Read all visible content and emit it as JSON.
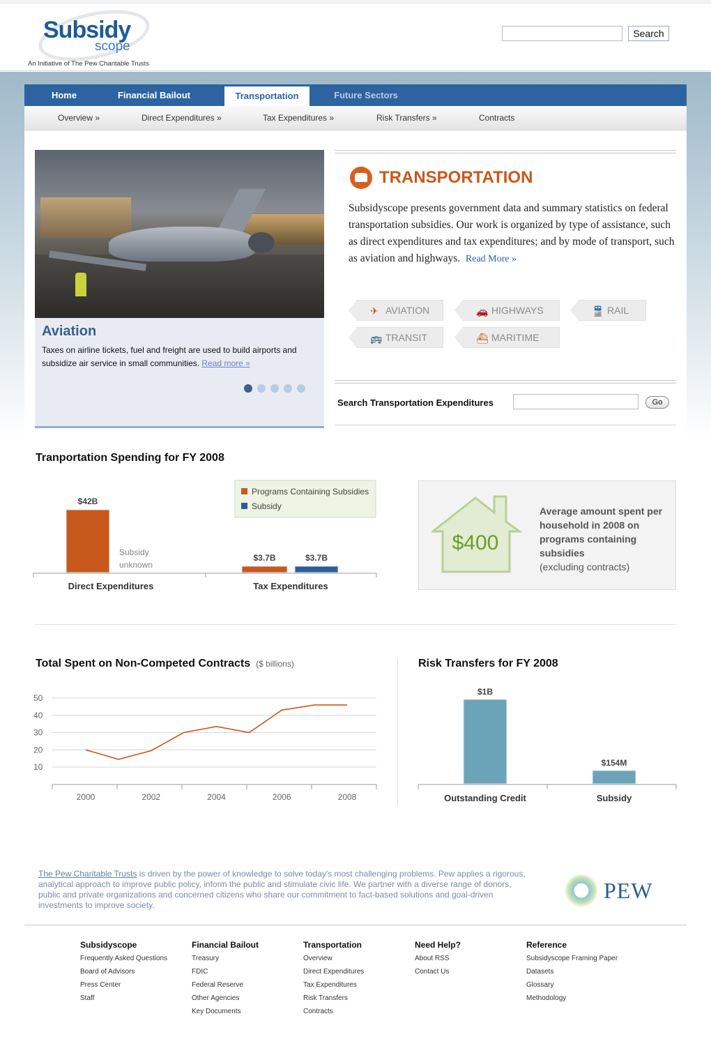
{
  "header": {
    "logo_word1": "Subsidy",
    "logo_word2": "scope",
    "tagline": "An Initiative of The Pew Charitable Trusts",
    "search_placeholder": "",
    "search_button": "Search"
  },
  "nav": {
    "tabs": [
      {
        "label": "Home",
        "state": "normal"
      },
      {
        "label": "Financial Bailout",
        "state": "normal"
      },
      {
        "label": "Transportation",
        "state": "active"
      },
      {
        "label": "Future Sectors",
        "state": "disabled"
      }
    ],
    "subnav": [
      "Overview »",
      "Direct Expenditures »",
      "Tax Expenditures »",
      "Risk Transfers »",
      "Contracts"
    ]
  },
  "feature": {
    "title": "Aviation",
    "text": "Taxes on airline tickets, fuel and freight are used to build airports and subsidize air service in small communities.",
    "link": "Read more »",
    "slides": 5,
    "active_slide": 1
  },
  "transportation": {
    "title": "TRANSPORTATION",
    "intro": "Subsidyscope presents government data and summary statistics on federal transportation subsidies. Our work is organized by type of assistance, such as direct expenditures and tax expenditures; and by mode of transport, such as aviation and highways.",
    "read_more": "Read More »",
    "modes": [
      {
        "label": "AVIATION",
        "icon": "plane-icon",
        "glyph": "✈"
      },
      {
        "label": "HIGHWAYS",
        "icon": "car-icon",
        "glyph": "🚗"
      },
      {
        "label": "RAIL",
        "icon": "train-icon",
        "glyph": "🚆"
      },
      {
        "label": "TRANSIT",
        "icon": "bus-icon",
        "glyph": "🚌"
      },
      {
        "label": "MARITIME",
        "icon": "ship-icon",
        "glyph": "⛴"
      }
    ],
    "search_label": "Search Transportation Expenditures",
    "go_button": "Go"
  },
  "spending": {
    "title": "Tranportation Spending for FY 2008",
    "legend": [
      "Programs Containing Subsidies",
      "Subsidy"
    ],
    "note": "Subsidy\nunknown",
    "colors": {
      "programs": "#c8581c",
      "subsidy": "#2e5d94"
    }
  },
  "household": {
    "amount": "$400",
    "text_bold": "Average amount spent per household in 2008 on programs containing subsidies",
    "text_normal": "(excluding contracts)"
  },
  "contracts": {
    "title": "Total Spent on Non-Competed Contracts",
    "unit": "($ billions)"
  },
  "risk": {
    "title": "Risk Transfers for FY 2008"
  },
  "chart_data": [
    {
      "type": "bar",
      "categories": [
        "Direct Expenditures",
        "Tax Expenditures"
      ],
      "series": [
        {
          "name": "Programs Containing Subsidies",
          "values": [
            42,
            3.7
          ],
          "labels": [
            "$42B",
            "$3.7B"
          ]
        },
        {
          "name": "Subsidy",
          "values": [
            null,
            3.7
          ],
          "labels": [
            "",
            "$3.7B"
          ]
        }
      ],
      "ylim": [
        0,
        45
      ],
      "legend": "top-right"
    },
    {
      "type": "line",
      "x": [
        2000,
        2001,
        2002,
        2003,
        2004,
        2005,
        2006,
        2007,
        2008
      ],
      "values": [
        20,
        14.5,
        19.5,
        30,
        33.5,
        30,
        43,
        46,
        46
      ],
      "xticks": [
        "2000",
        "2002",
        "2004",
        "2006",
        "2008"
      ],
      "yticks": [
        10,
        20,
        30,
        40,
        50
      ],
      "ylim": [
        0,
        50
      ],
      "xlim": [
        1999.5,
        2009
      ],
      "color": "#c8581c",
      "grid": true
    },
    {
      "type": "bar",
      "categories": [
        "Outstanding Credit",
        "Subsidy"
      ],
      "values": [
        1000,
        154
      ],
      "labels": [
        "$1B",
        "$154M"
      ],
      "unit": "$ millions",
      "ylim": [
        0,
        1000
      ],
      "color": "#6ba3b9"
    }
  ],
  "footer": {
    "about_link": "The Pew Charitable Trusts",
    "about_text": " is driven by the power of knowledge to solve today's most challenging problems. Pew applies a rigorous, analytical approach to improve public policy, inform the public and stimulate civic life. We partner with a diverse range of donors, public and private organizations and concerned citizens who share our commitment to fact-based solutions and goal-driven investments to improve society.",
    "pew_word": "PEW",
    "columns": [
      {
        "heading": "Subsidyscope",
        "items": [
          "Frequently Asked Questions",
          "Board of Advisors",
          "Press Center",
          "Staff"
        ]
      },
      {
        "heading": "Financial Bailout",
        "items": [
          "Treasury",
          "FDIC",
          "Federal Reserve",
          "Other Agencies",
          "Key Documents"
        ]
      },
      {
        "heading": "Transportation",
        "items": [
          "Overview",
          "Direct Expenditures",
          "Tax Expenditures",
          "Risk Transfers",
          "Contracts"
        ]
      },
      {
        "heading": "Need Help?",
        "items": [
          "About RSS",
          "Contact Us"
        ]
      },
      {
        "heading": "Reference",
        "items": [
          "Subsidyscope Framing Paper",
          "Datasets",
          "Glossary",
          "Methodology"
        ]
      }
    ]
  }
}
